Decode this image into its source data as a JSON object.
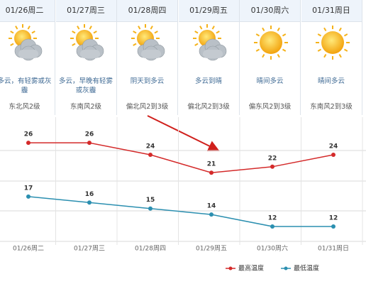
{
  "days": [
    {
      "date": "01/26周二",
      "desc": "多云，有轻雾或灰霾",
      "wind": "东北风2级"
    },
    {
      "date": "01/27周三",
      "desc": "多云，早晚有轻雾或灰霾",
      "wind": "东南风2级"
    },
    {
      "date": "01/28周四",
      "desc": "阴天到多云",
      "wind": "偏北风2到3级"
    },
    {
      "date": "01/29周五",
      "desc": "多云到晴",
      "wind": "偏北风2到3级"
    },
    {
      "date": "01/30周六",
      "desc": "晴间多云",
      "wind": "偏东风2到3级"
    },
    {
      "date": "01/31周日",
      "desc": "晴间多云",
      "wind": "东南风2到3级"
    }
  ],
  "chart_data": {
    "type": "line",
    "categories": [
      "01/26周二",
      "01/27周三",
      "01/28周四",
      "01/29周五",
      "01/30周六",
      "01/31周日"
    ],
    "series": [
      {
        "name": "最高温度",
        "color": "#d42a2a",
        "values": [
          26,
          26,
          24,
          21,
          22,
          24
        ]
      },
      {
        "name": "最低温度",
        "color": "#2b8fb0",
        "values": [
          17,
          16,
          15,
          14,
          12,
          12
        ]
      }
    ],
    "ylim": [
      9.5,
      29.7
    ],
    "legend": "bottom-right"
  }
}
